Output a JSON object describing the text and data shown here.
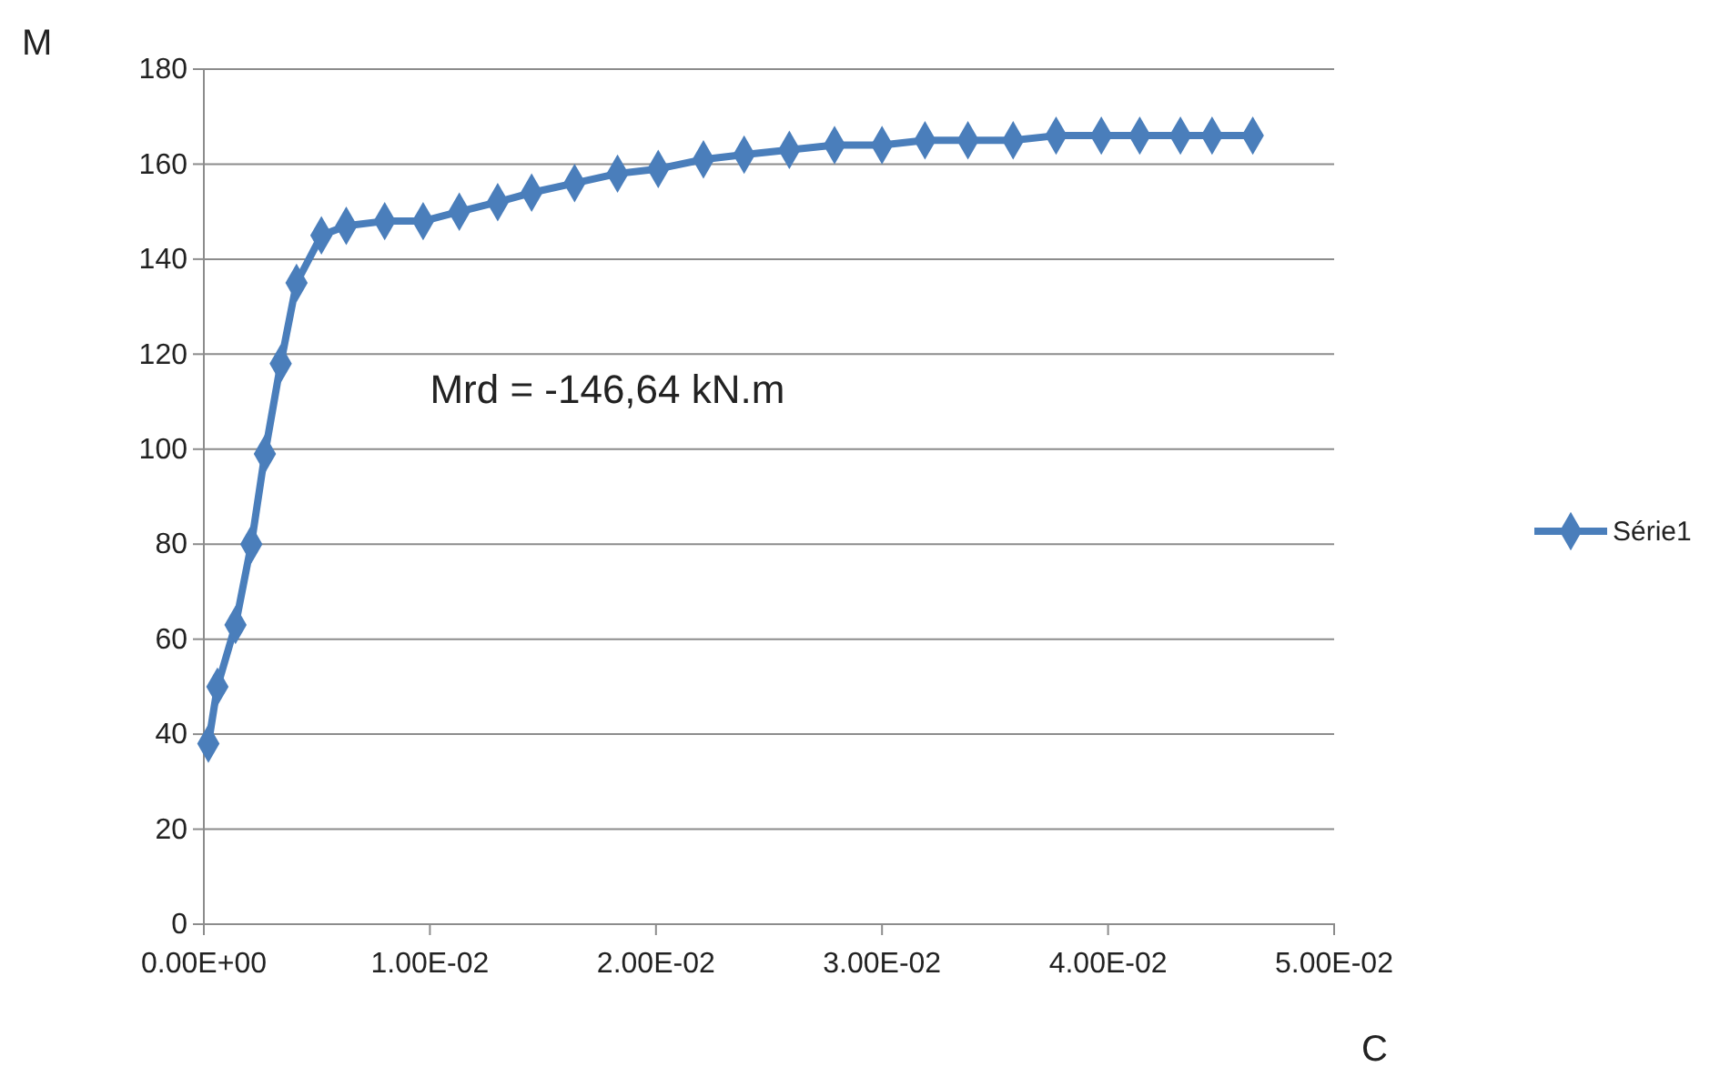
{
  "chart_data": {
    "type": "line",
    "xlabel": "C",
    "ylabel": "M",
    "annotations": [
      "Mrd = -146,64 kN.m"
    ],
    "xlim": [
      0,
      0.05
    ],
    "xticks": [
      {
        "value": 0,
        "label": "0.00E+00"
      },
      {
        "value": 0.01,
        "label": "1.00E-02"
      },
      {
        "value": 0.02,
        "label": "2.00E-02"
      },
      {
        "value": 0.03,
        "label": "3.00E-02"
      },
      {
        "value": 0.04,
        "label": "4.00E-02"
      },
      {
        "value": 0.05,
        "label": "5.00E-02"
      }
    ],
    "ylim": [
      0,
      180
    ],
    "yticks": [
      0,
      20,
      40,
      60,
      80,
      100,
      120,
      140,
      160,
      180
    ],
    "grid": "y",
    "legend": "right",
    "marker": "diamond",
    "line_style": "solid",
    "x": [
      0.0002,
      0.0006,
      0.0014,
      0.0021,
      0.0027,
      0.0034,
      0.0041,
      0.0052,
      0.0063,
      0.008,
      0.0097,
      0.0113,
      0.013,
      0.0145,
      0.0164,
      0.0183,
      0.0201,
      0.0221,
      0.0239,
      0.0259,
      0.0279,
      0.03,
      0.0319,
      0.0338,
      0.0358,
      0.0377,
      0.0397,
      0.0414,
      0.0432,
      0.0446,
      0.0464
    ],
    "series": [
      {
        "name": "Série1",
        "color": "#4a7ebb",
        "values": [
          38,
          50,
          63,
          80,
          99,
          118,
          135,
          145,
          147,
          148,
          148,
          150,
          152,
          154,
          156,
          158,
          159,
          161,
          162,
          163,
          164,
          164,
          165,
          165,
          165,
          166,
          166,
          166,
          166,
          166,
          166
        ]
      }
    ]
  }
}
